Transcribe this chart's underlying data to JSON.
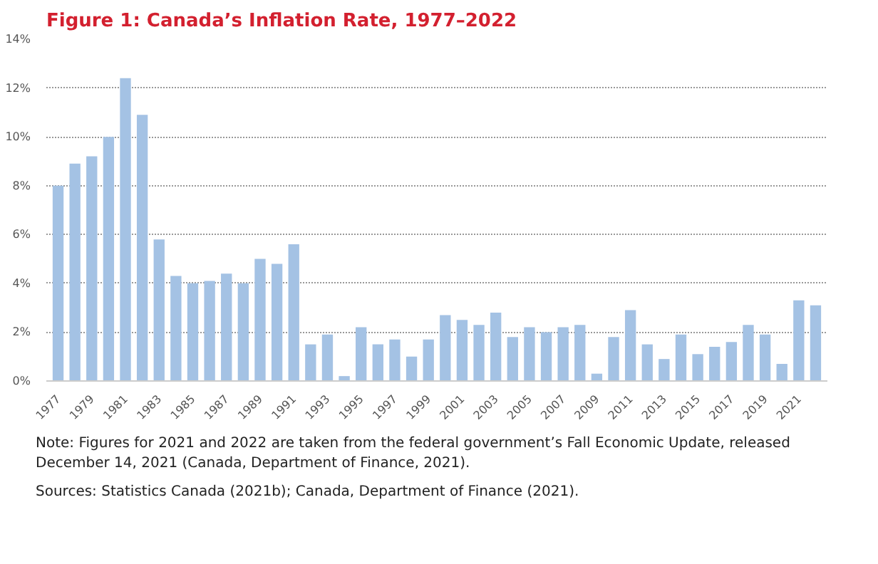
{
  "chart_data": {
    "type": "bar",
    "title": "Figure 1: Canada’s Inflation Rate, 1977–2022",
    "categories": [
      "1977",
      null,
      "1979",
      null,
      "1981",
      null,
      "1983",
      null,
      "1985",
      null,
      "1987",
      null,
      "1989",
      null,
      "1991",
      null,
      "1993",
      null,
      "1995",
      null,
      "1997",
      null,
      "1999",
      null,
      "2001",
      null,
      "2003",
      null,
      "2005",
      null,
      "2007",
      null,
      "2009",
      null,
      "2011",
      null,
      "2013",
      null,
      "2015",
      null,
      "2017",
      null,
      "2019",
      null,
      "2021",
      null
    ],
    "values": [
      8.0,
      8.9,
      9.2,
      10.0,
      12.4,
      10.9,
      5.8,
      4.3,
      4.0,
      4.1,
      4.4,
      4.0,
      5.0,
      4.8,
      5.6,
      1.5,
      1.9,
      0.2,
      2.2,
      1.5,
      1.7,
      1.0,
      1.7,
      2.7,
      2.5,
      2.3,
      2.8,
      1.8,
      2.2,
      2.0,
      2.2,
      2.3,
      0.3,
      1.8,
      2.9,
      1.5,
      0.9,
      1.9,
      1.1,
      1.4,
      1.6,
      2.3,
      1.9,
      0.7,
      3.3,
      3.1
    ],
    "color": "#a4c2e4",
    "ylim": [
      0,
      14
    ],
    "yticks": [
      {
        "value": 0,
        "label": "0%"
      },
      {
        "value": 2,
        "label": "2%"
      },
      {
        "value": 4,
        "label": "4%"
      },
      {
        "value": 6,
        "label": "6%"
      },
      {
        "value": 8,
        "label": "8%"
      },
      {
        "value": 10,
        "label": "10%"
      },
      {
        "value": 12,
        "label": "12%"
      },
      {
        "value": 14,
        "label": "14%"
      }
    ],
    "grid": "y",
    "annotations": [
      "Note: Figures for 2021 and 2022 are taken from the federal government’s Fall Economic Update, released December 14, 2021 (Canada, Department of Finance, 2021).",
      "Sources: Statistics Canada (2021b); Canada, Department of Finance (2021)."
    ]
  }
}
